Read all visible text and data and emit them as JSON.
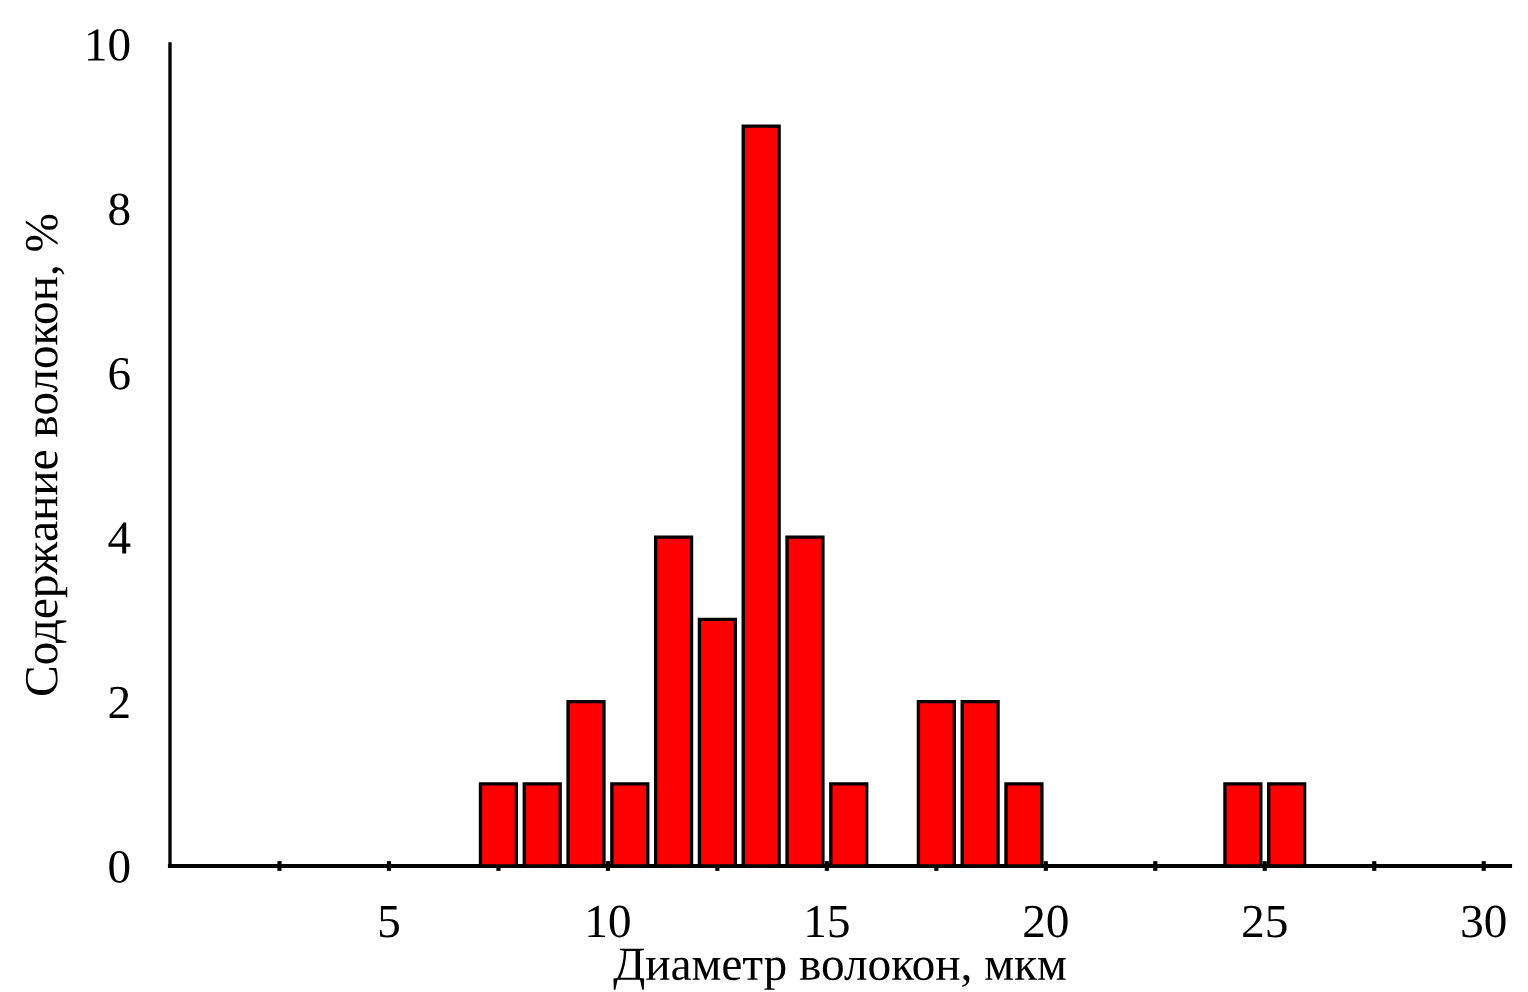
{
  "chart_data": {
    "type": "histogram",
    "xlabel": "Диаметр волокон, мкм",
    "ylabel": "Содержание волокон, %",
    "bins": [
      7,
      8,
      9,
      10,
      11,
      12,
      13,
      14,
      15,
      16,
      17,
      18,
      19,
      20,
      21,
      22,
      23,
      24,
      25,
      26
    ],
    "values": [
      1,
      1,
      2,
      1,
      4,
      3,
      9,
      4,
      1,
      0,
      2,
      2,
      1,
      0,
      0,
      0,
      0,
      1,
      1
    ],
    "color": "#ff0000",
    "xlim": [
      0,
      30.6
    ],
    "ylim": [
      0,
      10
    ],
    "xticks": [
      {
        "value": 2.5,
        "label": null
      },
      5,
      {
        "value": 7.5,
        "label": null
      },
      10,
      {
        "value": 12.5,
        "label": null
      },
      15,
      {
        "value": 17.5,
        "label": null
      },
      20,
      {
        "value": 22.5,
        "label": null
      },
      25,
      {
        "value": 27.5,
        "label": null
      },
      30
    ],
    "yticks": [
      0,
      2,
      4,
      6,
      8,
      10
    ],
    "grid": false,
    "legend": false
  }
}
